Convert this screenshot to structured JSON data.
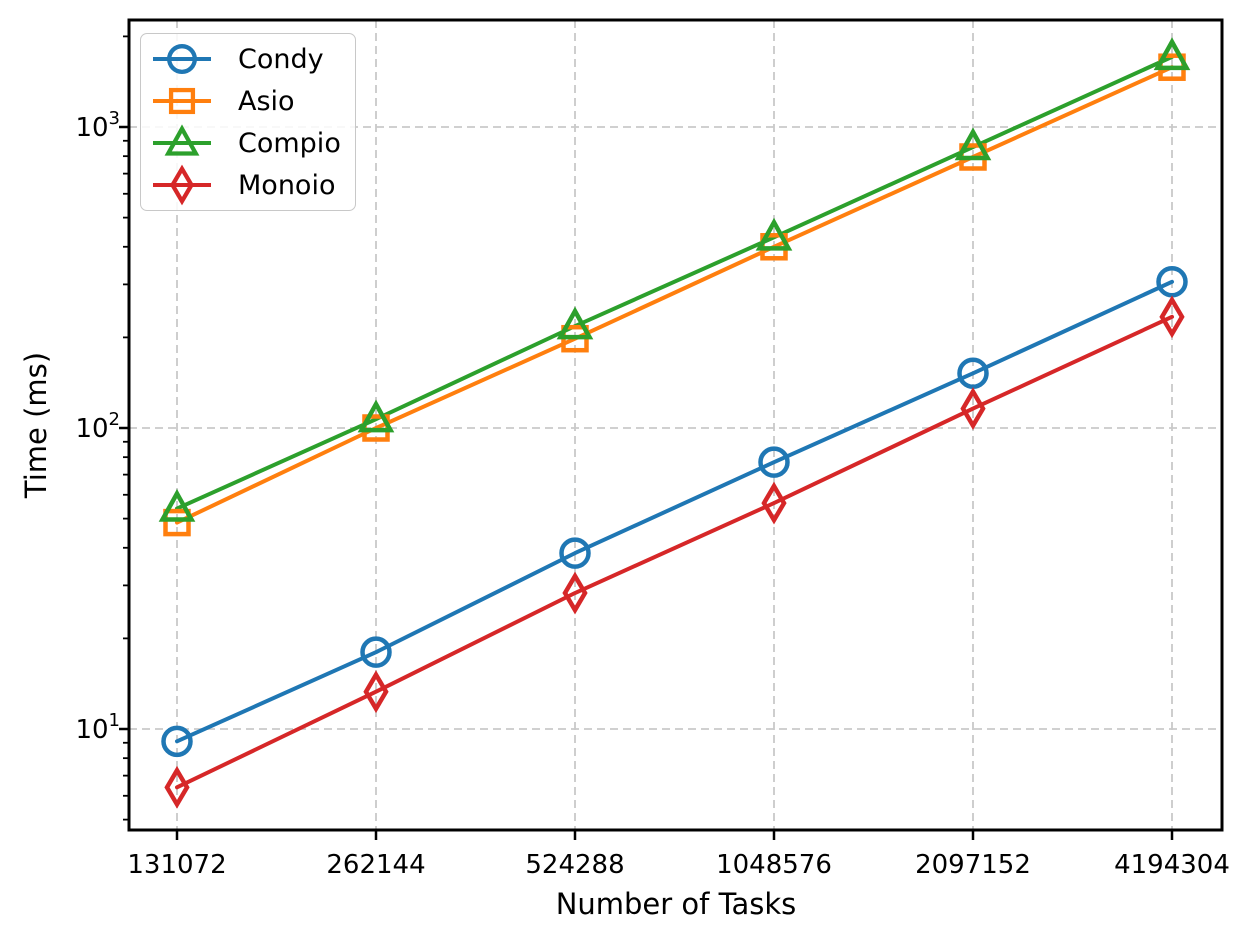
{
  "figure": {
    "background": "#ffffff"
  },
  "chart_data": {
    "type": "line",
    "title": "",
    "xlabel": "Number of Tasks",
    "ylabel": "Time (ms)",
    "x_scale": "log2",
    "y_scale": "log10",
    "categories": [
      131072,
      262144,
      524288,
      1048576,
      2097152,
      4194304
    ],
    "x_tick_labels": [
      "131072",
      "262144",
      "524288",
      "1048576",
      "2097152",
      "4194304"
    ],
    "y_major_ticks": [
      {
        "value": 10,
        "base": "10",
        "exponent": "1"
      },
      {
        "value": 100,
        "base": "10",
        "exponent": "2"
      },
      {
        "value": 1000,
        "base": "10",
        "exponent": "3"
      }
    ],
    "ylim": [
      4.6,
      2265
    ],
    "grid": true,
    "grid_style": "dashed",
    "legend_position": "upper-left",
    "series": [
      {
        "name": "Condy",
        "color": "#1f77b4",
        "marker": "circle",
        "values": [
          9.1,
          18,
          38.4,
          77,
          152,
          306
        ]
      },
      {
        "name": "Asio",
        "color": "#ff7f0e",
        "marker": "square",
        "values": [
          48.5,
          100,
          198,
          400,
          795,
          1580
        ]
      },
      {
        "name": "Compio",
        "color": "#2ca02c",
        "marker": "triangle-up",
        "values": [
          54,
          107,
          218,
          430,
          858,
          1710
        ]
      },
      {
        "name": "Monoio",
        "color": "#d62728",
        "marker": "diamond-thin",
        "values": [
          6.4,
          13.3,
          28.3,
          56.3,
          116,
          234
        ]
      }
    ],
    "colors": {
      "grid": "#c9c9c9",
      "spine": "#000000",
      "text": "#000000"
    }
  }
}
